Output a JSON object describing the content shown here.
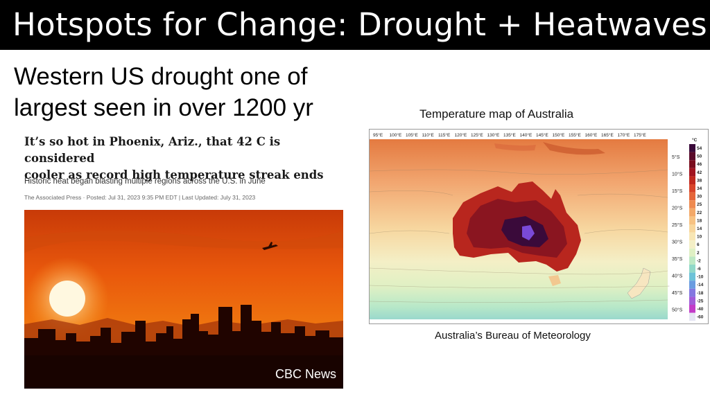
{
  "slide": {
    "title": "Hotspots for Change: Drought + Heatwaves",
    "headline_line1": "Western US drought one of",
    "headline_line2": "largest seen in over 1200 yr"
  },
  "article": {
    "title_line1": "It’s so hot in Phoenix, Ariz., that 42 C is considered",
    "title_line2": "cooler as record high temperature streak ends",
    "subtitle": "Historic heat began blasting multiple regions across the U.S. in June",
    "meta": "The Associated Press · Posted: Jul 31, 2023 9:35 PM EDT | Last Updated: July 31, 2023",
    "photo_credit": "CBC News"
  },
  "map": {
    "title": "Temperature map of Australia",
    "caption": "Australia’s Bureau of Meteorology",
    "longitudes": [
      "95°E",
      "100°E",
      "105°E",
      "110°E",
      "115°E",
      "120°E",
      "125°E",
      "130°E",
      "135°E",
      "140°E",
      "145°E",
      "150°E",
      "155°E",
      "160°E",
      "165°E",
      "170°E",
      "175°E"
    ],
    "latitudes": [
      "5°S",
      "10°S",
      "15°S",
      "20°S",
      "25°S",
      "30°S",
      "35°S",
      "40°S",
      "45°S",
      "50°S"
    ],
    "scale_unit": "°C",
    "scale_values": [
      "54",
      "50",
      "46",
      "42",
      "38",
      "34",
      "30",
      "25",
      "22",
      "18",
      "14",
      "10",
      "6",
      "2",
      "-2",
      "-6",
      "-10",
      "-14",
      "-18",
      "-25",
      "-40",
      "-60"
    ],
    "scale_colors": [
      "#3a0a3a",
      "#5a0a2a",
      "#7a0d1e",
      "#a11420",
      "#c0281e",
      "#d8442a",
      "#e5663a",
      "#ee8a50",
      "#f3a868",
      "#f7c282",
      "#f8d69c",
      "#f8e6b4",
      "#f4efc6",
      "#dff0c4",
      "#bde8c4",
      "#90d8c8",
      "#6cc2d8",
      "#6a9ce0",
      "#8478e0",
      "#a25cd8",
      "#c23cc8",
      "#e6e6f4"
    ]
  }
}
